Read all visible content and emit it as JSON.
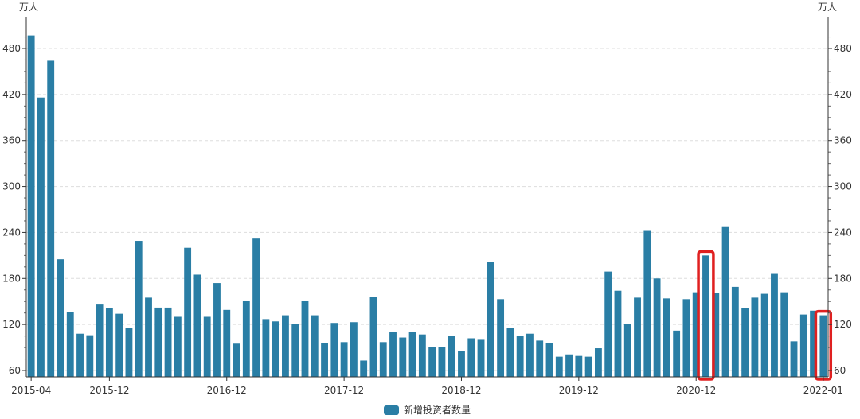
{
  "chart_data": {
    "type": "bar",
    "unit_left": "万人",
    "unit_right": "万人",
    "ylim": [
      52,
      520
    ],
    "yticks": [
      60,
      120,
      180,
      240,
      300,
      360,
      420,
      480
    ],
    "grid": true,
    "legend_position": "bottom-center",
    "xtick_labels": [
      "2015-04",
      "2015-12",
      "2016-12",
      "2017-12",
      "2018-12",
      "2019-12",
      "2020-12",
      "2022-01"
    ],
    "x": [
      "2015-04",
      "2015-05",
      "2015-06",
      "2015-07",
      "2015-08",
      "2015-09",
      "2015-10",
      "2015-11",
      "2015-12",
      "2016-01",
      "2016-02",
      "2016-03",
      "2016-04",
      "2016-05",
      "2016-06",
      "2016-07",
      "2016-08",
      "2016-09",
      "2016-10",
      "2016-11",
      "2016-12",
      "2017-01",
      "2017-02",
      "2017-03",
      "2017-04",
      "2017-05",
      "2017-06",
      "2017-07",
      "2017-08",
      "2017-09",
      "2017-10",
      "2017-11",
      "2017-12",
      "2018-01",
      "2018-02",
      "2018-03",
      "2018-04",
      "2018-05",
      "2018-06",
      "2018-07",
      "2018-08",
      "2018-09",
      "2018-10",
      "2018-11",
      "2018-12",
      "2019-01",
      "2019-02",
      "2019-03",
      "2019-04",
      "2019-05",
      "2019-06",
      "2019-07",
      "2019-08",
      "2019-09",
      "2019-10",
      "2019-11",
      "2019-12",
      "2020-01",
      "2020-02",
      "2020-03",
      "2020-04",
      "2020-05",
      "2020-06",
      "2020-07",
      "2020-08",
      "2020-09",
      "2020-10",
      "2020-11",
      "2020-12",
      "2021-01",
      "2021-02",
      "2021-03",
      "2021-04",
      "2021-05",
      "2021-06",
      "2021-07",
      "2021-08",
      "2021-09",
      "2021-10",
      "2021-11",
      "2021-12",
      "2022-01"
    ],
    "series": [
      {
        "name": "新增投资者数量",
        "color": "#2a7ea5",
        "values": [
          497,
          416,
          464,
          205,
          136,
          108,
          106,
          147,
          141,
          134,
          115,
          229,
          155,
          142,
          142,
          130,
          220,
          185,
          130,
          174,
          139,
          95,
          151,
          233,
          127,
          124,
          132,
          121,
          151,
          132,
          96,
          122,
          97,
          123,
          73,
          156,
          97,
          110,
          103,
          110,
          107,
          91,
          91,
          105,
          85,
          102,
          100,
          202,
          153,
          115,
          105,
          108,
          99,
          96,
          78,
          81,
          79,
          78,
          89,
          189,
          164,
          121,
          155,
          243,
          180,
          154,
          112,
          153,
          162,
          210,
          161,
          248,
          169,
          141,
          155,
          160,
          187,
          162,
          98,
          133,
          138,
          132
        ]
      }
    ],
    "highlights": [
      "2021-01",
      "2022-01"
    ],
    "highlight_color": "#e02020"
  }
}
